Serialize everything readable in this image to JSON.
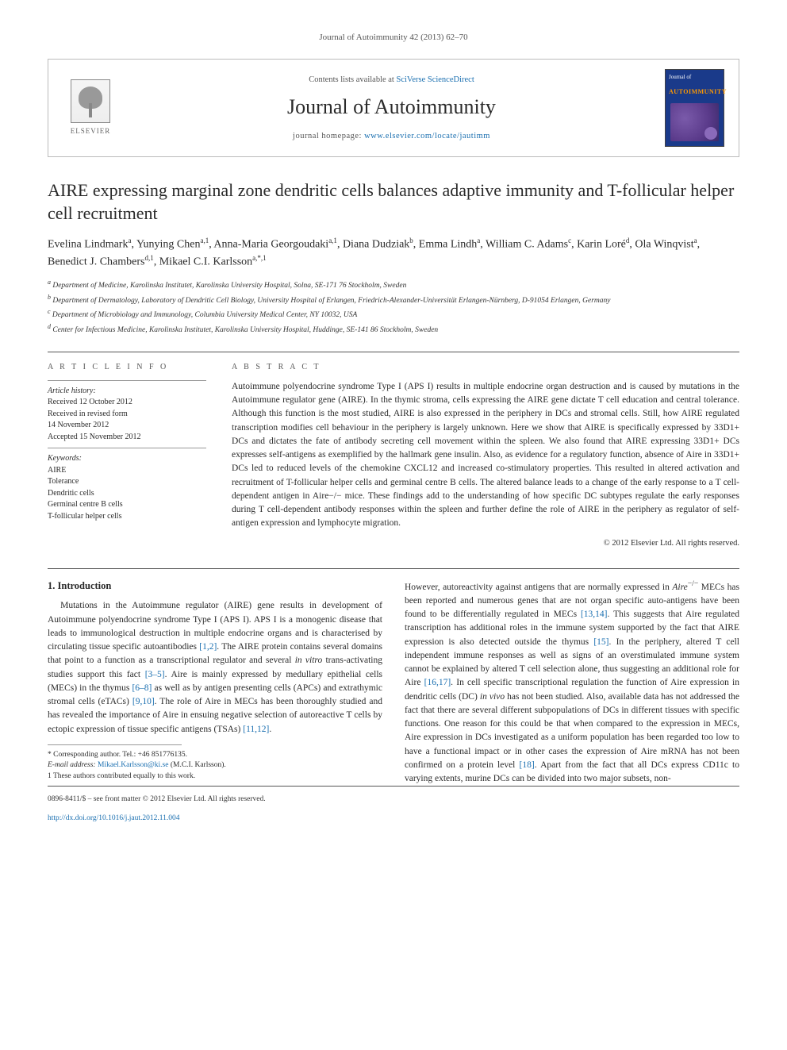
{
  "header": {
    "citation": "Journal of Autoimmunity 42 (2013) 62–70",
    "contents_prefix": "Contents lists available at ",
    "contents_link": "SciVerse ScienceDirect",
    "journal_name": "Journal of Autoimmunity",
    "homepage_prefix": "journal homepage: ",
    "homepage_url": "www.elsevier.com/locate/jautimm",
    "publisher_logo_text": "ELSEVIER",
    "cover_top": "Journal of",
    "cover_word": "AUTOIMMUNITY"
  },
  "article": {
    "title": "AIRE expressing marginal zone dendritic cells balances adaptive immunity and T-follicular helper cell recruitment",
    "authors_html": "Evelina Lindmark<sup>a</sup>, Yunying Chen<sup>a,1</sup>, Anna-Maria Georgoudaki<sup>a,1</sup>, Diana Dudziak<sup>b</sup>, Emma Lindh<sup>a</sup>, William C. Adams<sup>c</sup>, Karin Loré<sup>d</sup>, Ola Winqvist<sup>a</sup>, Benedict J. Chambers<sup>d,1</sup>, Mikael C.I. Karlsson<sup>a,*,1</sup>",
    "affiliations": [
      "a Department of Medicine, Karolinska Institutet, Karolinska University Hospital, Solna, SE-171 76 Stockholm, Sweden",
      "b Department of Dermatology, Laboratory of Dendritic Cell Biology, University Hospital of Erlangen, Friedrich-Alexander-Universität Erlangen-Nürnberg, D-91054 Erlangen, Germany",
      "c Department of Microbiology and Immunology, Columbia University Medical Center, NY 10032, USA",
      "d Center for Infectious Medicine, Karolinska Institutet, Karolinska University Hospital, Huddinge, SE-141 86 Stockholm, Sweden"
    ]
  },
  "meta": {
    "info_label": "A R T I C L E   I N F O",
    "history_head": "Article history:",
    "history_lines": [
      "Received 12 October 2012",
      "Received in revised form",
      "14 November 2012",
      "Accepted 15 November 2012"
    ],
    "keywords_head": "Keywords:",
    "keywords": [
      "AIRE",
      "Tolerance",
      "Dendritic cells",
      "Germinal centre B cells",
      "T-follicular helper cells"
    ]
  },
  "abstract": {
    "label": "A B S T R A C T",
    "text": "Autoimmune polyendocrine syndrome Type I (APS I) results in multiple endocrine organ destruction and is caused by mutations in the Autoimmune regulator gene (AIRE). In the thymic stroma, cells expressing the AIRE gene dictate T cell education and central tolerance. Although this function is the most studied, AIRE is also expressed in the periphery in DCs and stromal cells. Still, how AIRE regulated transcription modifies cell behaviour in the periphery is largely unknown. Here we show that AIRE is specifically expressed by 33D1+ DCs and dictates the fate of antibody secreting cell movement within the spleen. We also found that AIRE expressing 33D1+ DCs expresses self-antigens as exemplified by the hallmark gene insulin. Also, as evidence for a regulatory function, absence of Aire in 33D1+ DCs led to reduced levels of the chemokine CXCL12 and increased co-stimulatory properties. This resulted in altered activation and recruitment of T-follicular helper cells and germinal centre B cells. The altered balance leads to a change of the early response to a T cell-dependent antigen in Aire−/− mice. These findings add to the understanding of how specific DC subtypes regulate the early responses during T cell-dependent antibody responses within the spleen and further define the role of AIRE in the periphery as regulator of self-antigen expression and lymphocyte migration.",
    "copyright": "© 2012 Elsevier Ltd. All rights reserved."
  },
  "body": {
    "section_heading": "1. Introduction",
    "col1_p1": "Mutations in the Autoimmune regulator (AIRE) gene results in development of Autoimmune polyendocrine syndrome Type I (APS I). APS I is a monogenic disease that leads to immunological destruction in multiple endocrine organs and is characterised by circulating tissue specific autoantibodies [1,2]. The AIRE protein contains several domains that point to a function as a transcriptional regulator and several in vitro trans-activating studies support this fact [3–5]. Aire is mainly expressed by medullary epithelial cells (MECs) in the thymus [6–8] as well as by antigen presenting cells (APCs) and extrathymic stromal cells (eTACs) [9,10]. The role of Aire in MECs has been thoroughly studied and has revealed the importance of Aire in ensuing negative selection of autoreactive T cells by ectopic expression of tissue specific antigens (TSAs) [11,12].",
    "col2_p1": "However, autoreactivity against antigens that are normally expressed in Aire−/− MECs has been reported and numerous genes that are not organ specific auto-antigens have been found to be differentially regulated in MECs [13,14]. This suggests that Aire regulated transcription has additional roles in the immune system supported by the fact that AIRE expression is also detected outside the thymus [15]. In the periphery, altered T cell independent immune responses as well as signs of an overstimulated immune system cannot be explained by altered T cell selection alone, thus suggesting an additional role for Aire [16,17]. In cell specific transcriptional regulation the function of Aire expression in dendritic cells (DC) in vivo has not been studied. Also, available data has not addressed the fact that there are several different subpopulations of DCs in different tissues with specific functions. One reason for this could be that when compared to the expression in MECs, Aire expression in DCs investigated as a uniform population has been regarded too low to have a functional impact or in other cases the expression of Aire mRNA has not been confirmed on a protein level [18]. Apart from the fact that all DCs express CD11c to varying extents, murine DCs can be divided into two major subsets, non-"
  },
  "footnotes": {
    "corr": "* Corresponding author. Tel.: +46 851776135.",
    "email_label": "E-mail address: ",
    "email": "Mikael.Karlsson@ki.se",
    "email_suffix": " (M.C.I. Karlsson).",
    "equal": "1 These authors contributed equally to this work."
  },
  "footer": {
    "issn": "0896-8411/$ – see front matter © 2012 Elsevier Ltd. All rights reserved.",
    "doi_prefix": "http://dx.doi.org/",
    "doi": "10.1016/j.jaut.2012.11.004"
  },
  "colors": {
    "link": "#1a6fb0",
    "text": "#2a2a2a",
    "rule": "#555555",
    "cover_bg": "#1a3a8a",
    "cover_accent": "#ff9a00"
  }
}
